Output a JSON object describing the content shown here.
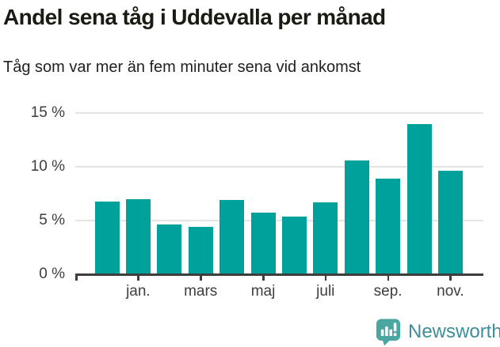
{
  "header": {
    "title": "Andel sena tåg i Uddevalla per månad",
    "subtitle": "Tåg som var mer än fem minuter sena vid ankomst"
  },
  "chart_data": {
    "type": "bar",
    "title": "Andel sena tåg i Uddevalla per månad",
    "subtitle": "Tåg som var mer än fem minuter sena vid ankomst",
    "values": [
      6.8,
      7.0,
      4.6,
      4.4,
      6.9,
      5.7,
      5.4,
      6.7,
      10.6,
      8.9,
      14.0,
      9.6
    ],
    "unit": "%",
    "x_tick_labels": [
      "jan.",
      "mars",
      "maj",
      "juli",
      "sep.",
      "nov."
    ],
    "x_tick_bar_indexes": [
      1,
      3,
      5,
      7,
      9,
      11
    ],
    "y_tick_labels": [
      "0 %",
      "5 %",
      "10 %",
      "15 %"
    ],
    "y_tick_values": [
      0,
      5,
      10,
      15
    ],
    "ylim": [
      0,
      15.2
    ],
    "grid": true,
    "legend": false,
    "bar_color": "#00a09b",
    "gridline_color": "#e4e4e4",
    "axis_color": "#3d3d3d",
    "label_color": "#3d3d3d"
  },
  "footer": {
    "brand": "Newsworthy",
    "brand_color": "#3e8e99",
    "logo_icon": "bar-chart-speech-bubble-icon",
    "logo_color": "#4ba6a1",
    "logo_glyph_color": "#ffffff"
  }
}
